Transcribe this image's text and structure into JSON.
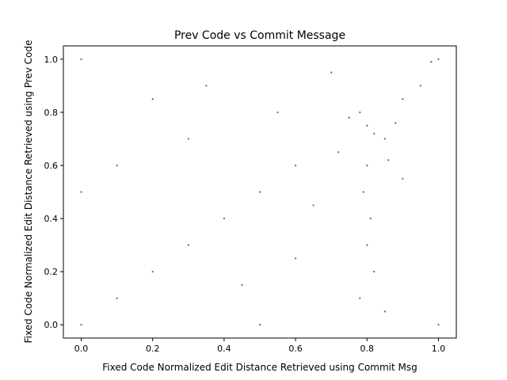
{
  "chart_data": {
    "type": "scatter",
    "title": "Prev Code vs Commit Message",
    "xlabel": "Fixed Code Normalized Edit Distance Retrieved using Commit Msg",
    "ylabel": "Fixed Code Normalized Edit Distance Retrieved using Prev Code",
    "xlim": [
      -0.05,
      1.05
    ],
    "ylim": [
      -0.05,
      1.05
    ],
    "xticks": [
      "0.0",
      "0.2",
      "0.4",
      "0.6",
      "0.8",
      "1.0"
    ],
    "yticks": [
      "0.0",
      "0.2",
      "0.4",
      "0.6",
      "0.8",
      "1.0"
    ],
    "grid": false,
    "marker_color": "#1f77b4",
    "series": [
      {
        "points": [
          [
            0.8,
            0.75
          ],
          [
            0.82,
            0.72
          ],
          [
            0.78,
            0.8
          ],
          [
            0.85,
            0.7
          ],
          [
            0.75,
            0.78
          ],
          [
            0.88,
            0.76
          ],
          [
            0.8,
            0.6
          ],
          [
            0.79,
            0.5
          ],
          [
            0.81,
            0.4
          ],
          [
            0.8,
            0.3
          ],
          [
            0.82,
            0.2
          ],
          [
            0.78,
            0.1
          ],
          [
            0.85,
            0.05
          ],
          [
            0.9,
            0.85
          ],
          [
            0.95,
            0.9
          ],
          [
            0.7,
            0.95
          ],
          [
            0.98,
            0.99
          ],
          [
            0.72,
            0.65
          ],
          [
            0.86,
            0.62
          ],
          [
            0.9,
            0.55
          ],
          [
            0.2,
            0.2
          ],
          [
            0.4,
            0.4
          ],
          [
            0.6,
            0.6
          ],
          [
            0.1,
            0.1
          ],
          [
            0.3,
            0.3
          ],
          [
            0.5,
            0.5
          ],
          [
            0.0,
            0.0
          ],
          [
            0.0,
            0.5
          ],
          [
            0.0,
            1.0
          ],
          [
            1.0,
            1.0
          ],
          [
            1.0,
            0.0
          ],
          [
            0.5,
            0.0
          ],
          [
            0.3,
            0.7
          ],
          [
            0.2,
            0.85
          ],
          [
            0.1,
            0.6
          ],
          [
            0.45,
            0.15
          ],
          [
            0.6,
            0.25
          ],
          [
            0.35,
            0.9
          ],
          [
            0.55,
            0.8
          ],
          [
            0.65,
            0.45
          ]
        ]
      }
    ]
  }
}
